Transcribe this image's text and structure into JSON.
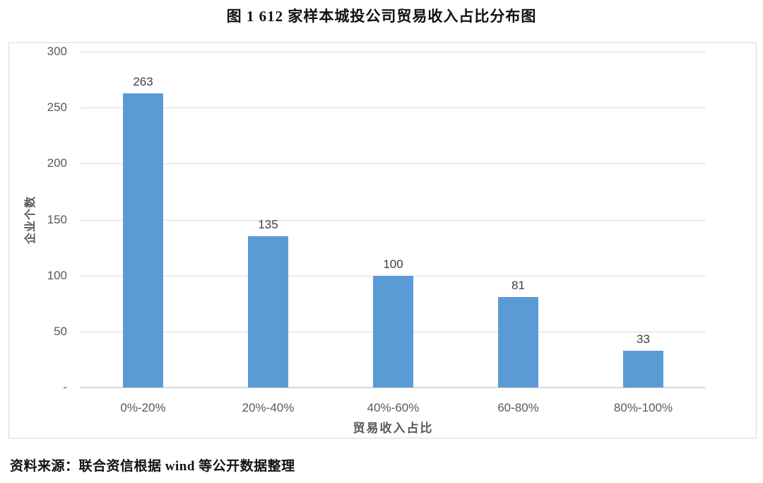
{
  "page": {
    "title": "图 1  612 家样本城投公司贸易收入占比分布图",
    "source_note": "资料来源：联合资信根据 wind 等公开数据整理"
  },
  "chart_data": {
    "type": "bar",
    "title": "图 1  612 家样本城投公司贸易收入占比分布图",
    "categories": [
      "0%-20%",
      "20%-40%",
      "40%-60%",
      "60-80%",
      "80%-100%"
    ],
    "values": [
      263,
      135,
      100,
      81,
      33
    ],
    "xlabel": "贸易收入占比",
    "ylabel": "企业个数",
    "ylim": [
      0,
      300
    ],
    "ytick_step": 50,
    "ytick_labels": [
      "-",
      "50",
      "100",
      "150",
      "200",
      "250",
      "300"
    ],
    "grid": true,
    "legend": "none",
    "bar_color": "#5b9bd5",
    "gridline_color": "#d9d9d9",
    "value_label_color": "#404040",
    "tick_label_color": "#595959"
  }
}
